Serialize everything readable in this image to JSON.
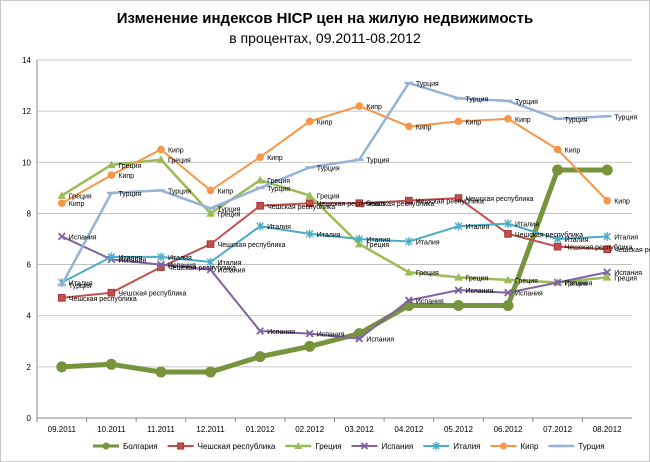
{
  "chart_data": {
    "type": "line",
    "title": "Изменение индексов HICP цен на жилую недвижимость",
    "subtitle": "в процентах, 09.2011-08.2012",
    "categories": [
      "09.2011",
      "10.2011",
      "11.2011",
      "12.2011",
      "01.2012",
      "02.2012",
      "03.2012",
      "04.2012",
      "05.2012",
      "06.2012",
      "07.2012",
      "08.2012"
    ],
    "ylim": [
      0,
      14
    ],
    "yticks": [
      "0",
      "2",
      "4",
      "6",
      "8",
      "10",
      "12",
      "14"
    ],
    "grid": true,
    "legend_position": "bottom",
    "series": [
      {
        "name": "Болгария",
        "color": "#77933c",
        "marker": "circle",
        "width": 5,
        "values": [
          2.0,
          2.1,
          1.8,
          1.8,
          2.4,
          2.8,
          3.3,
          4.4,
          4.4,
          4.4,
          9.7,
          9.7
        ],
        "labels": [
          null,
          null,
          null,
          null,
          null,
          null,
          null,
          null,
          null,
          null,
          null,
          null
        ]
      },
      {
        "name": "Чешская республика",
        "color": "#c0504d",
        "marker": "square",
        "width": 2,
        "values": [
          4.7,
          4.9,
          5.9,
          6.8,
          8.3,
          8.4,
          8.4,
          8.5,
          8.6,
          7.2,
          6.7,
          6.6
        ],
        "labels": [
          "Чешская республика",
          "Чешская республика",
          "Чешская республика",
          "Чешская республика",
          "Чешская республика",
          "Чешская республика",
          "Чешская республика",
          "Чешская республика",
          "Чешская республика",
          "Чешская республика",
          "Чешская республика",
          "Чешская республика"
        ]
      },
      {
        "name": "Греция",
        "color": "#9bbb59",
        "marker": "triangle",
        "width": 2.5,
        "values": [
          8.7,
          9.9,
          10.1,
          8.0,
          9.3,
          8.7,
          6.8,
          5.7,
          5.5,
          5.4,
          5.3,
          5.5
        ],
        "labels": [
          "Греция",
          "Греция",
          "Греция",
          "Греция",
          "Греция",
          "Греция",
          "Греция",
          "Греция",
          "Греция",
          "Греция",
          "Греция",
          "Греция"
        ]
      },
      {
        "name": "Испания",
        "color": "#8064a2",
        "marker": "x",
        "width": 2,
        "values": [
          7.1,
          6.2,
          6.0,
          5.8,
          3.4,
          3.3,
          3.1,
          4.6,
          5.0,
          4.9,
          5.3,
          5.7
        ],
        "labels": [
          "Испания",
          "Испания",
          "Испания",
          "Испания",
          "Испания",
          "Испания",
          "Испания",
          "Испания",
          "Испания",
          "Испания",
          "Испания",
          "Испания"
        ]
      },
      {
        "name": "Италия",
        "color": "#4bacc6",
        "marker": "star",
        "width": 2,
        "values": [
          5.3,
          6.3,
          6.3,
          6.1,
          7.5,
          7.2,
          7.0,
          6.9,
          7.5,
          7.6,
          7.0,
          7.1
        ],
        "labels": [
          "Италия",
          "Италия",
          "Италия",
          "Италия",
          "Италия",
          "Италия",
          "Италия",
          "Италия",
          "Италия",
          "Италия",
          "Италия",
          "Италия"
        ]
      },
      {
        "name": "Кипр",
        "color": "#f79646",
        "marker": "circle",
        "width": 2,
        "values": [
          8.4,
          9.5,
          10.5,
          8.9,
          10.2,
          11.6,
          12.2,
          11.4,
          11.6,
          11.7,
          10.5,
          8.5
        ],
        "labels": [
          "Кипр",
          "Кипр",
          "Кипр",
          "Кипр",
          "Кипр",
          "Кипр",
          "Кипр",
          "Кипр",
          "Кипр",
          "Кипр",
          "Кипр",
          "Кипр"
        ]
      },
      {
        "name": "Турция",
        "color": "#95b3d7",
        "marker": "dash",
        "width": 2.5,
        "values": [
          5.2,
          8.8,
          8.9,
          8.2,
          9.0,
          9.8,
          10.1,
          13.1,
          12.5,
          12.4,
          11.7,
          11.8
        ],
        "labels": [
          "Турция",
          "Турция",
          "Турция",
          "Турция",
          "Турция",
          "Турция",
          "Турция",
          "Турция",
          "Турция",
          "Турция",
          "Турция",
          "Турция"
        ]
      }
    ]
  }
}
